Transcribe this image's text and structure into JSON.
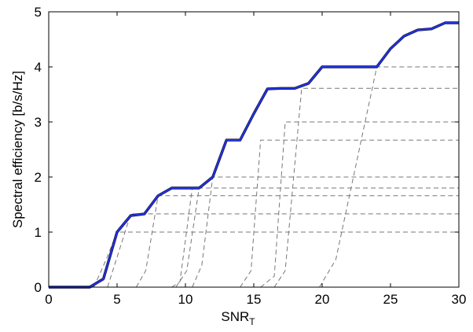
{
  "chart_data": {
    "type": "line",
    "xlabel": "SNR",
    "xlabel_sub": "T",
    "ylabel": "Spectral efficiency [b/s/Hz]",
    "xlim": [
      0,
      30
    ],
    "ylim": [
      0,
      5
    ],
    "xticks": [
      0,
      5,
      10,
      15,
      20,
      25,
      30
    ],
    "yticks": [
      0,
      1,
      2,
      3,
      4,
      5
    ],
    "grid": false,
    "colors": {
      "main": "#2233dd",
      "main_shadow": "#0a0a33",
      "dashed": "#777777"
    },
    "series": [
      {
        "style": "solid",
        "x": [
          0,
          3,
          4,
          5,
          6,
          7,
          8,
          9,
          10,
          11,
          12,
          13,
          14,
          15,
          16,
          17,
          18,
          19,
          20,
          21,
          22,
          23,
          24,
          25,
          26,
          27,
          28,
          29,
          30
        ],
        "y": [
          0,
          0,
          0.15,
          1.0,
          1.3,
          1.33,
          1.66,
          1.8,
          1.8,
          1.8,
          2.0,
          2.67,
          2.67,
          3.15,
          3.6,
          3.61,
          3.61,
          3.7,
          4.0,
          4.0,
          4.0,
          4.0,
          4.0,
          4.33,
          4.56,
          4.67,
          4.69,
          4.8,
          4.8
        ]
      },
      {
        "style": "dashed",
        "x": [
          3.3,
          4.2,
          5.0,
          30
        ],
        "y": [
          0,
          0.5,
          1.0,
          1.0
        ]
      },
      {
        "style": "dashed",
        "x": [
          4.3,
          5.2,
          6.0,
          30
        ],
        "y": [
          0,
          0.7,
          1.33,
          1.33
        ]
      },
      {
        "style": "dashed",
        "x": [
          6.4,
          7.1,
          8.0,
          30
        ],
        "y": [
          0,
          0.3,
          1.66,
          1.66
        ]
      },
      {
        "style": "dashed",
        "x": [
          9.0,
          9.6,
          10.5,
          30
        ],
        "y": [
          0,
          0.1,
          1.8,
          1.8
        ]
      },
      {
        "style": "dashed",
        "x": [
          9.3,
          10.1,
          11.0,
          30
        ],
        "y": [
          0,
          0.3,
          1.8,
          1.8
        ]
      },
      {
        "style": "dashed",
        "x": [
          10.5,
          11.2,
          12.0,
          30
        ],
        "y": [
          0,
          0.4,
          2.0,
          2.0
        ]
      },
      {
        "style": "dashed",
        "x": [
          14.0,
          14.8,
          15.5,
          30
        ],
        "y": [
          0,
          0.3,
          2.67,
          2.67
        ]
      },
      {
        "style": "dashed",
        "x": [
          15.5,
          16.5,
          17.3,
          30
        ],
        "y": [
          0,
          0.2,
          3.0,
          3.0
        ]
      },
      {
        "style": "dashed",
        "x": [
          16.5,
          17.3,
          18.5,
          30
        ],
        "y": [
          0,
          0.3,
          3.61,
          3.61
        ]
      },
      {
        "style": "dashed",
        "x": [
          19.8,
          21.0,
          24.0,
          30
        ],
        "y": [
          0,
          0.5,
          4.0,
          4.0
        ]
      }
    ]
  }
}
